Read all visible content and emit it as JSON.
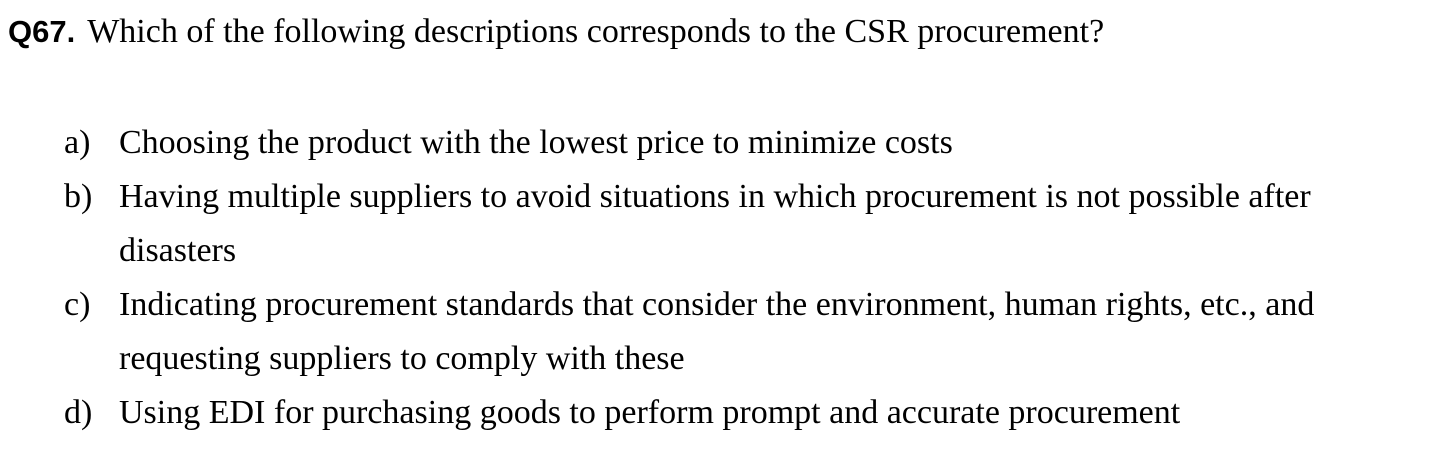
{
  "question": {
    "number": "Q67.",
    "text": "Which of the following descriptions corresponds to the CSR procurement?"
  },
  "options": [
    {
      "letter": "a)",
      "text": "Choosing the product with the lowest price to minimize costs"
    },
    {
      "letter": "b)",
      "text": "Having multiple suppliers to avoid situations in which procurement is not possible after disasters"
    },
    {
      "letter": "c)",
      "text": "Indicating procurement standards that consider the environment, human rights, etc., and requesting suppliers to comply with these"
    },
    {
      "letter": "d)",
      "text": "Using EDI for purchasing goods to perform prompt and accurate procurement"
    }
  ]
}
